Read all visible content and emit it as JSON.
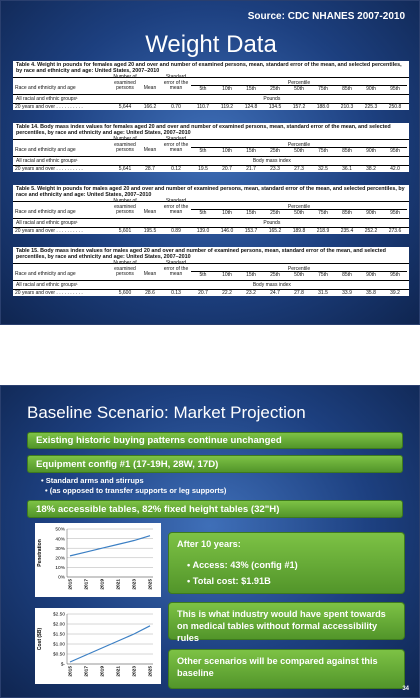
{
  "slide1": {
    "source": "Source: CDC NHANES 2007-2010",
    "title": "Weight Data",
    "tables": [
      {
        "caption": "Table 4. Weight in pounds for females aged 20 and over and number of examined persons, mean, standard error of the mean, and selected percentiles, by race and ethnicity and age: United States, 2007–2010",
        "headers": [
          "Race and ethnicity and age",
          "Number of examined persons",
          "Mean",
          "Standard error of the mean"
        ],
        "percentile_title": "Percentile",
        "percentiles": [
          "5th",
          "10th",
          "15th",
          "25th",
          "50th",
          "75th",
          "85th",
          "90th",
          "95th"
        ],
        "sub_left": "All racial and ethnic groups¹",
        "unit": "Pounds",
        "row": {
          "label": "20 years and over . . . . . . . . . .",
          "n": "5,644",
          "mean": "166.2",
          "se": "0.70",
          "values": [
            "110.7",
            "119.2",
            "124.8",
            "134.5",
            "157.2",
            "188.0",
            "210.3",
            "225.3",
            "250.8"
          ]
        }
      },
      {
        "caption": "Table 14. Body mass index values for females aged 20 and over and number of examined persons, mean, standard error of the mean, and selected percentiles, by race and ethnicity and age: United States, 2007–2010",
        "headers": [
          "Race and ethnicity and age",
          "Number of examined persons",
          "Mean",
          "Standard error of the mean"
        ],
        "percentile_title": "Percentile",
        "percentiles": [
          "5th",
          "10th",
          "15th",
          "25th",
          "50th",
          "75th",
          "85th",
          "90th",
          "95th"
        ],
        "sub_left": "All racial and ethnic groups¹",
        "unit": "Body mass index",
        "row": {
          "label": "20 years and over . . . . . . . . . .",
          "n": "5,641",
          "mean": "28.7",
          "se": "0.12",
          "values": [
            "19.5",
            "20.7",
            "21.7",
            "23.3",
            "27.3",
            "32.5",
            "36.1",
            "38.2",
            "42.0"
          ]
        }
      },
      {
        "caption": "Table 5. Weight in pounds for males aged 20 and over and number of examined persons, mean, standard error of the mean, and selected percentiles, by race and ethnicity and age: United States, 2007–2010",
        "headers": [
          "Race and ethnicity and age",
          "Number of examined persons",
          "Mean",
          "Standard error of the mean"
        ],
        "percentile_title": "Percentile",
        "percentiles": [
          "5th",
          "10th",
          "15th",
          "25th",
          "50th",
          "75th",
          "85th",
          "90th",
          "95th"
        ],
        "sub_left": "All racial and ethnic groups¹",
        "unit": "Pounds",
        "row": {
          "label": "20 years and over . . . . . . . . . .",
          "n": "5,601",
          "mean": "195.5",
          "se": "0.89",
          "values": [
            "139.0",
            "146.0",
            "153.7",
            "165.2",
            "189.8",
            "218.9",
            "235.4",
            "252.2",
            "273.6"
          ]
        }
      },
      {
        "caption": "Table 15. Body mass index values for males aged 20 and over and number of examined persons, mean, standard error of the mean, and selected percentiles, by race and ethnicity and age: United States, 2007–2010",
        "headers": [
          "Race and ethnicity and age",
          "Number of examined persons",
          "Mean",
          "Standard error of the mean"
        ],
        "percentile_title": "Percentile",
        "percentiles": [
          "5th",
          "10th",
          "15th",
          "25th",
          "50th",
          "75th",
          "85th",
          "90th",
          "95th"
        ],
        "sub_left": "All racial and ethnic groups¹",
        "unit": "Body mass index",
        "row": {
          "label": "20 years and over . . . . . . . . . .",
          "n": "5,600",
          "mean": "28.6",
          "se": "0.13",
          "values": [
            "20.7",
            "22.2",
            "23.2",
            "24.7",
            "27.8",
            "31.5",
            "33.9",
            "35.8",
            "39.2"
          ]
        }
      }
    ]
  },
  "slide2": {
    "title": "Baseline Scenario: Market Projection",
    "bar1": "Existing historic buying patterns continue unchanged",
    "bar2": "Equipment config #1 (17-19H, 28W, 17D)",
    "bullet1": "Standard arms and stirrups",
    "bullet2": "(as opposed to transfer supports or leg supports)",
    "bar3": "18% accessible tables, 82% fixed height tables (32\"H)",
    "box1_title": "After 10 years:",
    "box1_items": [
      "Access:  43% (config #1)",
      "Total cost: $1.91B"
    ],
    "box2": "This is what industry would have spent towards on medical tables without formal accessibility rules",
    "box3": "Other scenarios will be compared against this baseline",
    "page_number": "34"
  },
  "chart_data": [
    {
      "type": "line",
      "x": [
        "2015",
        "2017",
        "2019",
        "2021",
        "2023",
        "2025"
      ],
      "series": [
        {
          "values": [
            22,
            26,
            30,
            34,
            38,
            43
          ]
        }
      ],
      "ylabel": "Penetration",
      "ylim": [
        0,
        50
      ],
      "yticks": [
        "0%",
        "10%",
        "20%",
        "30%",
        "40%",
        "50%"
      ],
      "grid": true
    },
    {
      "type": "line",
      "x": [
        "2015",
        "2017",
        "2019",
        "2021",
        "2023",
        "2025"
      ],
      "series": [
        {
          "values": [
            0.1,
            0.45,
            0.8,
            1.15,
            1.5,
            1.91
          ]
        }
      ],
      "ylabel": "Cost ($B)",
      "ylim": [
        0,
        2.5
      ],
      "yticks": [
        "$-",
        "$0.50",
        "$1.00",
        "$1.50",
        "$2.00",
        "$2.50"
      ],
      "grid": true
    }
  ]
}
